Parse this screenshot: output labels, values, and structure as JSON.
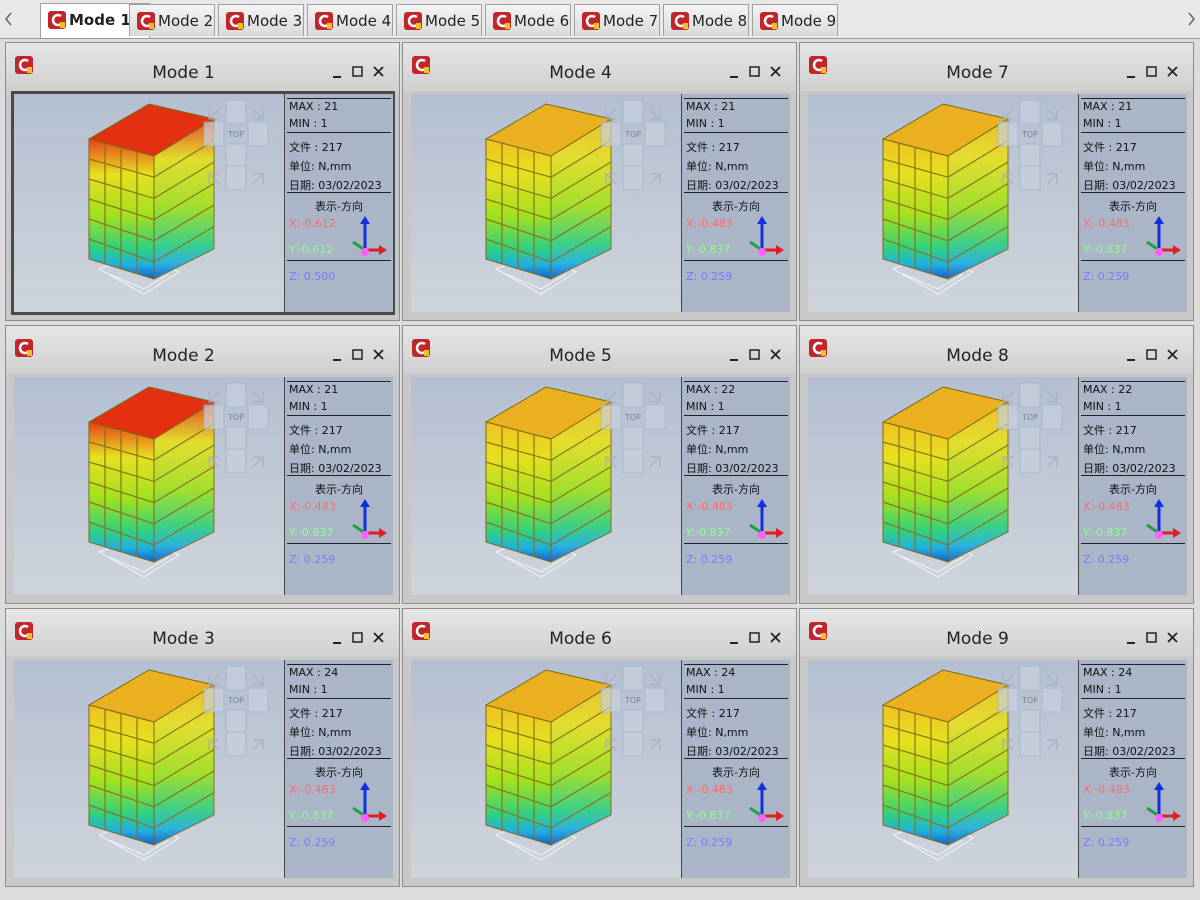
{
  "tabs": [
    "Mode 1",
    "Mode 2",
    "Mode 3",
    "Mode 4",
    "Mode 5",
    "Mode 6",
    "Mode 7",
    "Mode 8",
    "Mode 9"
  ],
  "view_cube": {
    "label": "TOP"
  },
  "panels": [
    {
      "title": "Mode 1",
      "max": "MAX : 21",
      "min": "MIN : 1",
      "file": "文件 : 217",
      "unit": "单位: N,mm",
      "date": "日期: 03/02/2023",
      "direction": "表示-方向",
      "x": "X:-0.612",
      "y": "Y:-0.612",
      "z": "Z: 0.500"
    },
    {
      "title": "Mode 4",
      "max": "MAX : 21",
      "min": "MIN : 1",
      "file": "文件 : 217",
      "unit": "单位: N,mm",
      "date": "日期: 03/02/2023",
      "direction": "表示-方向",
      "x": "X:-0.483",
      "y": "Y:-0.837",
      "z": "Z: 0.259"
    },
    {
      "title": "Mode 7",
      "max": "MAX : 21",
      "min": "MIN : 1",
      "file": "文件 : 217",
      "unit": "单位: N,mm",
      "date": "日期: 03/02/2023",
      "direction": "表示-方向",
      "x": "X:-0.483",
      "y": "Y:-0.837",
      "z": "Z: 0.259"
    },
    {
      "title": "Mode 2",
      "max": "MAX : 21",
      "min": "MIN : 1",
      "file": "文件 : 217",
      "unit": "单位: N,mm",
      "date": "日期: 03/02/2023",
      "direction": "表示-方向",
      "x": "X:-0.483",
      "y": "Y:-0.837",
      "z": "Z: 0.259"
    },
    {
      "title": "Mode 5",
      "max": "MAX : 22",
      "min": "MIN : 1",
      "file": "文件 : 217",
      "unit": "单位: N,mm",
      "date": "日期: 03/02/2023",
      "direction": "表示-方向",
      "x": "X:-0.483",
      "y": "Y:-0.837",
      "z": "Z: 0.259"
    },
    {
      "title": "Mode 8",
      "max": "MAX : 22",
      "min": "MIN : 1",
      "file": "文件 : 217",
      "unit": "单位: N,mm",
      "date": "日期: 03/02/2023",
      "direction": "表示-方向",
      "x": "X:-0.483",
      "y": "Y:-0.837",
      "z": "Z: 0.259"
    },
    {
      "title": "Mode 3",
      "max": "MAX : 24",
      "min": "MIN : 1",
      "file": "文件 : 217",
      "unit": "单位: N,mm",
      "date": "日期: 03/02/2023",
      "direction": "表示-方向",
      "x": "X:-0.483",
      "y": "Y:-0.837",
      "z": "Z: 0.259"
    },
    {
      "title": "Mode 6",
      "max": "MAX : 24",
      "min": "MIN : 1",
      "file": "文件 : 217",
      "unit": "单位: N,mm",
      "date": "日期: 03/02/2023",
      "direction": "表示-方向",
      "x": "X:-0.483",
      "y": "Y:-0.837",
      "z": "Z: 0.259"
    },
    {
      "title": "Mode 9",
      "max": "MAX : 24",
      "min": "MIN : 1",
      "file": "文件 : 217",
      "unit": "单位: N,mm",
      "date": "日期: 03/02/2023",
      "direction": "表示-方向",
      "x": "X:-0.483",
      "y": "Y:-0.837",
      "z": "Z: 0.259"
    }
  ]
}
